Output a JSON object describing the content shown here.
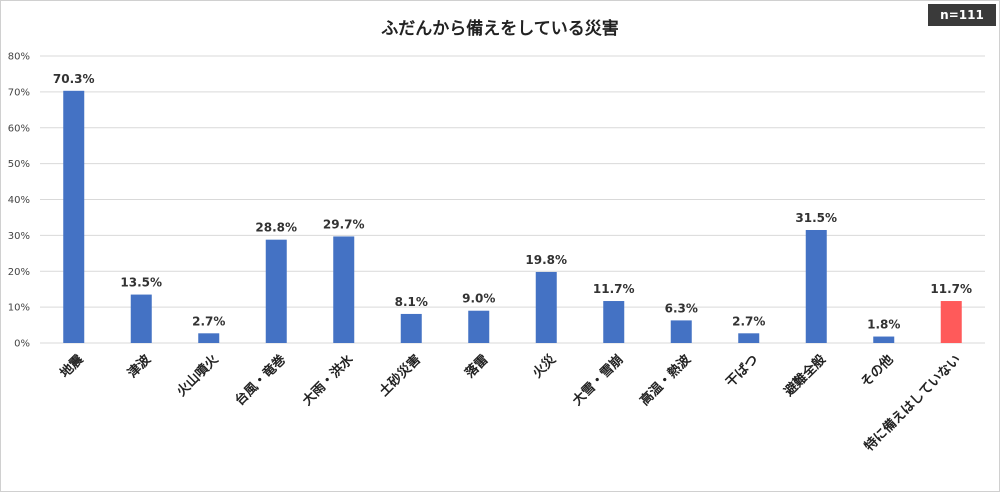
{
  "chart_data": {
    "type": "bar",
    "title": "ふだんから備えをしている災害",
    "note": "n=111",
    "categories": [
      "地震",
      "津波",
      "火山噴火",
      "台風・竜巻",
      "大雨・洪水",
      "土砂災害",
      "落雷",
      "火災",
      "大雪・雪崩",
      "高温・熱波",
      "干ばつ",
      "避難全般",
      "その他",
      "特に備えはしていない"
    ],
    "values": [
      70.3,
      13.5,
      2.7,
      28.8,
      29.7,
      8.1,
      9.0,
      19.8,
      11.7,
      6.3,
      2.7,
      31.5,
      1.8,
      11.7
    ],
    "value_labels": [
      "70.3%",
      "13.5%",
      "2.7%",
      "28.8%",
      "29.7%",
      "8.1%",
      "9.0%",
      "19.8%",
      "11.7%",
      "6.3%",
      "2.7%",
      "31.5%",
      "1.8%",
      "11.7%"
    ],
    "ylim": [
      0,
      80
    ],
    "yticks": [
      "0%",
      "10%",
      "20%",
      "30%",
      "40%",
      "50%",
      "60%",
      "70%",
      "80%"
    ],
    "grid": true,
    "colors": {
      "bar": "#4472C4",
      "highlight": "#FF5A5A",
      "grid": "#d9d9d9"
    },
    "highlight_index": 13
  }
}
